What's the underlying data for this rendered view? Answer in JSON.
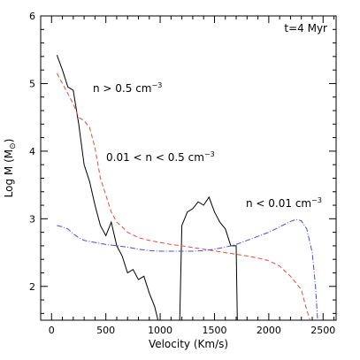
{
  "chart_data": {
    "type": "line",
    "annotation": "t=4 Myr",
    "xlabel": "Velocity (Km/s)",
    "ylabel_text": "Log M (M",
    "ylabel_unit_symbol": "⊙",
    "ylabel_close": ")",
    "xlim": [
      -100,
      2620
    ],
    "ylim": [
      1.5,
      6.0
    ],
    "xticks": [
      0,
      500,
      1000,
      1500,
      2000,
      2500
    ],
    "xtick_labels": [
      "0",
      "500",
      "1000",
      "1500",
      "2000",
      "2500"
    ],
    "yticks": [
      2,
      3,
      4,
      5,
      6
    ],
    "ytick_labels": [
      "2",
      "3",
      "4",
      "5",
      "6"
    ],
    "grid": false,
    "series": [
      {
        "name": "n > 0.5 cm⁻³",
        "color": "#000000",
        "dash": "solid",
        "segments": [
          [
            [
              50,
              5.42
            ],
            [
              100,
              5.2
            ],
            [
              150,
              4.95
            ],
            [
              200,
              4.9
            ],
            [
              250,
              4.4
            ],
            [
              300,
              3.8
            ],
            [
              350,
              3.55
            ],
            [
              400,
              3.2
            ],
            [
              450,
              2.9
            ],
            [
              500,
              2.75
            ],
            [
              550,
              2.95
            ],
            [
              600,
              2.6
            ],
            [
              650,
              2.45
            ],
            [
              700,
              2.2
            ],
            [
              750,
              2.25
            ],
            [
              800,
              2.1
            ],
            [
              850,
              2.15
            ],
            [
              900,
              1.9
            ],
            [
              950,
              1.7
            ],
            [
              980,
              1.5
            ]
          ],
          [
            [
              1180,
              1.5
            ],
            [
              1200,
              2.9
            ],
            [
              1250,
              3.1
            ],
            [
              1300,
              3.15
            ],
            [
              1350,
              3.25
            ],
            [
              1400,
              3.2
            ],
            [
              1450,
              3.32
            ],
            [
              1500,
              3.1
            ],
            [
              1550,
              2.95
            ],
            [
              1600,
              2.85
            ],
            [
              1650,
              2.6
            ],
            [
              1700,
              2.6
            ],
            [
              1710,
              1.5
            ]
          ]
        ]
      },
      {
        "name": "0.01 < n < 0.5 cm⁻³",
        "color": "#e8483a",
        "dash": "dashed",
        "segments": [
          [
            [
              50,
              5.15
            ],
            [
              100,
              5.0
            ],
            [
              150,
              4.85
            ],
            [
              200,
              4.7
            ],
            [
              250,
              4.5
            ],
            [
              300,
              4.45
            ],
            [
              350,
              4.35
            ],
            [
              400,
              4.05
            ],
            [
              450,
              3.6
            ],
            [
              500,
              3.35
            ],
            [
              550,
              3.1
            ],
            [
              600,
              2.95
            ],
            [
              650,
              2.88
            ],
            [
              700,
              2.8
            ],
            [
              800,
              2.72
            ],
            [
              900,
              2.68
            ],
            [
              1000,
              2.65
            ],
            [
              1100,
              2.62
            ],
            [
              1200,
              2.6
            ],
            [
              1400,
              2.55
            ],
            [
              1600,
              2.5
            ],
            [
              1800,
              2.45
            ],
            [
              1900,
              2.42
            ],
            [
              2000,
              2.38
            ],
            [
              2100,
              2.3
            ],
            [
              2200,
              2.15
            ],
            [
              2300,
              1.95
            ],
            [
              2350,
              1.65
            ],
            [
              2380,
              1.5
            ]
          ]
        ]
      },
      {
        "name": "n < 0.01 cm⁻³",
        "color": "#4a4ae0",
        "dash": "dashdot",
        "segments": [
          [
            [
              50,
              2.9
            ],
            [
              100,
              2.88
            ],
            [
              150,
              2.85
            ],
            [
              200,
              2.78
            ],
            [
              250,
              2.72
            ],
            [
              300,
              2.68
            ],
            [
              400,
              2.65
            ],
            [
              500,
              2.62
            ],
            [
              600,
              2.6
            ],
            [
              700,
              2.58
            ],
            [
              800,
              2.55
            ],
            [
              900,
              2.53
            ],
            [
              1000,
              2.52
            ],
            [
              1100,
              2.52
            ],
            [
              1200,
              2.52
            ],
            [
              1300,
              2.52
            ],
            [
              1400,
              2.53
            ],
            [
              1500,
              2.55
            ],
            [
              1600,
              2.58
            ],
            [
              1700,
              2.62
            ],
            [
              1800,
              2.68
            ],
            [
              1900,
              2.74
            ],
            [
              2000,
              2.8
            ],
            [
              2100,
              2.88
            ],
            [
              2200,
              2.96
            ],
            [
              2250,
              2.99
            ],
            [
              2300,
              2.97
            ],
            [
              2350,
              2.85
            ],
            [
              2400,
              2.5
            ],
            [
              2430,
              2.0
            ],
            [
              2450,
              1.5
            ]
          ]
        ]
      }
    ],
    "series_label_lines": [
      {
        "series_index": 0,
        "main": "n > 0.5 cm",
        "sup": "−3"
      },
      {
        "series_index": 1,
        "main": "0.01 < n < 0.5 cm",
        "sup": "−3"
      },
      {
        "series_index": 2,
        "main": "n < 0.01 cm",
        "sup": "−3"
      }
    ]
  }
}
